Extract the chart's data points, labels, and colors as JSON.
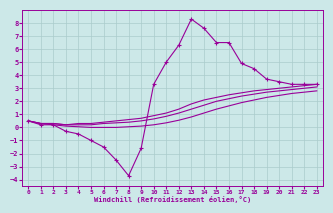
{
  "xlabel": "Windchill (Refroidissement éolien,°C)",
  "bg_color": "#cce8e8",
  "grid_color": "#aacccc",
  "line_color": "#990099",
  "xlim": [
    -0.5,
    23.5
  ],
  "ylim": [
    -4.5,
    9.0
  ],
  "xticks": [
    0,
    1,
    2,
    3,
    4,
    5,
    6,
    7,
    8,
    9,
    10,
    11,
    12,
    13,
    14,
    15,
    16,
    17,
    18,
    19,
    20,
    21,
    22,
    23
  ],
  "yticks": [
    -4,
    -3,
    -2,
    -1,
    0,
    1,
    2,
    3,
    4,
    5,
    6,
    7,
    8
  ],
  "main_x": [
    0,
    1,
    2,
    3,
    4,
    5,
    6,
    7,
    8,
    9,
    10,
    11,
    12,
    13,
    14,
    15,
    16,
    17,
    18,
    19,
    20,
    21,
    22,
    23
  ],
  "main_y": [
    0.5,
    0.2,
    0.2,
    -0.3,
    -0.5,
    -1.0,
    -1.5,
    -2.5,
    -3.7,
    -1.6,
    3.3,
    5.0,
    6.3,
    8.3,
    7.6,
    6.5,
    6.5,
    4.9,
    4.5,
    3.7,
    3.5,
    3.3,
    3.3,
    3.3
  ],
  "smooth1_x": [
    0,
    1,
    2,
    3,
    4,
    5,
    6,
    7,
    8,
    9,
    10,
    11,
    12,
    13,
    14,
    15,
    16,
    17,
    18,
    19,
    20,
    21,
    22,
    23
  ],
  "smooth1_y": [
    0.5,
    0.3,
    0.3,
    0.2,
    0.3,
    0.3,
    0.4,
    0.5,
    0.6,
    0.7,
    0.9,
    1.1,
    1.4,
    1.8,
    2.1,
    2.3,
    2.5,
    2.65,
    2.8,
    2.9,
    3.0,
    3.1,
    3.2,
    3.3
  ],
  "smooth2_x": [
    0,
    1,
    2,
    3,
    4,
    5,
    6,
    7,
    8,
    9,
    10,
    11,
    12,
    13,
    14,
    15,
    16,
    17,
    18,
    19,
    20,
    21,
    22,
    23
  ],
  "smooth2_y": [
    0.5,
    0.3,
    0.3,
    0.2,
    0.2,
    0.2,
    0.3,
    0.35,
    0.4,
    0.5,
    0.65,
    0.85,
    1.1,
    1.4,
    1.7,
    2.0,
    2.2,
    2.4,
    2.55,
    2.7,
    2.8,
    2.9,
    3.0,
    3.1
  ],
  "smooth3_x": [
    0,
    1,
    2,
    3,
    4,
    5,
    6,
    7,
    8,
    9,
    10,
    11,
    12,
    13,
    14,
    15,
    16,
    17,
    18,
    19,
    20,
    21,
    22,
    23
  ],
  "smooth3_y": [
    0.5,
    0.3,
    0.2,
    0.1,
    0.05,
    0.0,
    0.0,
    0.0,
    0.05,
    0.1,
    0.2,
    0.35,
    0.55,
    0.8,
    1.1,
    1.4,
    1.65,
    1.9,
    2.1,
    2.3,
    2.45,
    2.6,
    2.7,
    2.8
  ]
}
